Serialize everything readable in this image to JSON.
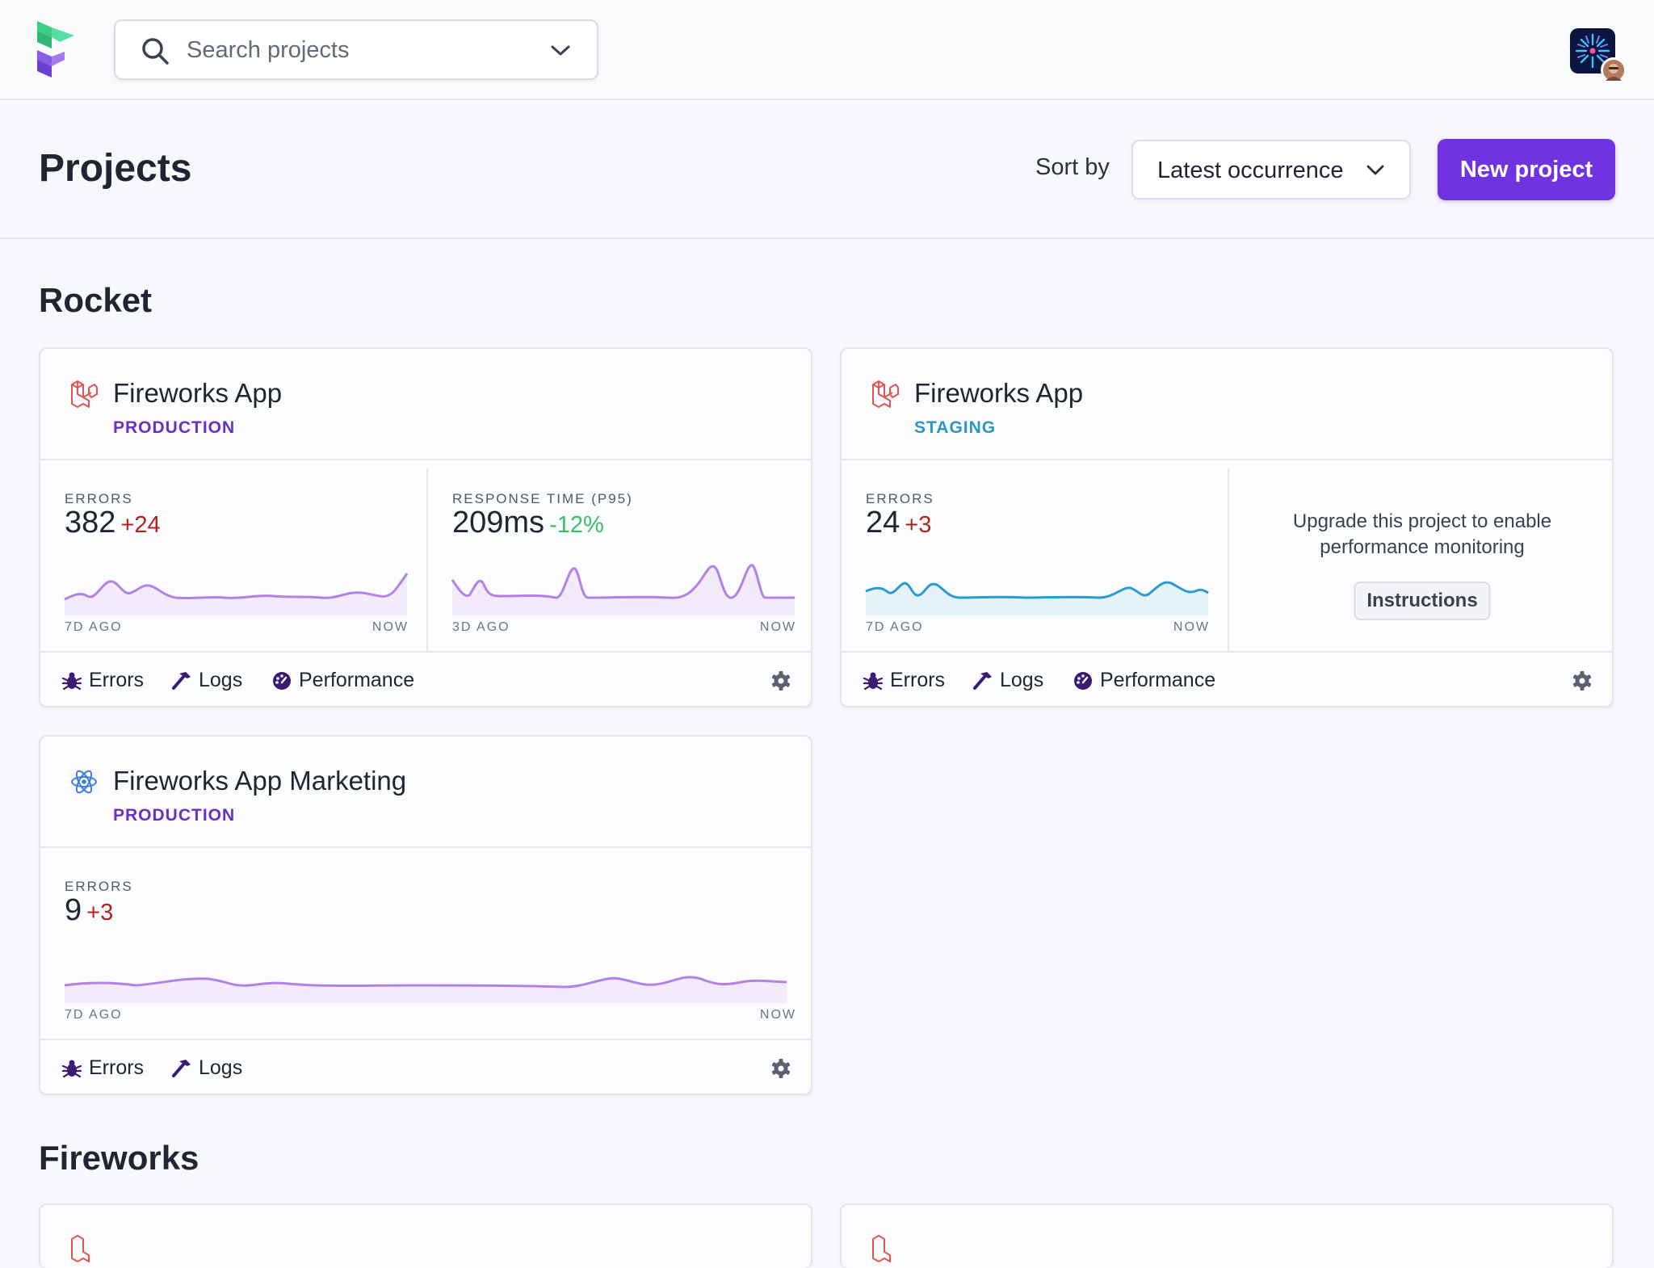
{
  "search": {
    "placeholder": "Search projects"
  },
  "header": {
    "title": "Projects",
    "sort_label": "Sort by",
    "sort_value": "Latest occurrence",
    "new_project_label": "New project"
  },
  "colors": {
    "accent": "#7133e2",
    "production": "#6b2fc4",
    "staging": "#2b95c6",
    "error_delta": "#b22323",
    "good_delta": "#3cbf6a"
  },
  "sections": [
    {
      "title": "Rocket",
      "cards": [
        {
          "name": "Fireworks App",
          "env": "PRODUCTION",
          "icon": "laravel-icon",
          "errors_label": "ERRORS",
          "errors_value": "382",
          "errors_delta": "+24",
          "errors_from": "7D AGO",
          "errors_to": "NOW",
          "response_label": "RESPONSE TIME (P95)",
          "response_value": "209ms",
          "response_delta": "-12%",
          "response_from": "3D AGO",
          "response_to": "NOW",
          "links": [
            "Errors",
            "Logs",
            "Performance"
          ]
        },
        {
          "name": "Fireworks App",
          "env": "STAGING",
          "icon": "laravel-icon",
          "errors_label": "ERRORS",
          "errors_value": "24",
          "errors_delta": "+3",
          "errors_from": "7D AGO",
          "errors_to": "NOW",
          "upgrade_message": "Upgrade this project to enable performance monitoring",
          "instructions_label": "Instructions",
          "links": [
            "Errors",
            "Logs",
            "Performance"
          ]
        },
        {
          "name": "Fireworks App Marketing",
          "env": "PRODUCTION",
          "icon": "react-icon",
          "errors_label": "ERRORS",
          "errors_value": "9",
          "errors_delta": "+3",
          "errors_from": "7D AGO",
          "errors_to": "NOW",
          "links": [
            "Errors",
            "Logs"
          ]
        }
      ]
    },
    {
      "title": "Fireworks"
    }
  ]
}
